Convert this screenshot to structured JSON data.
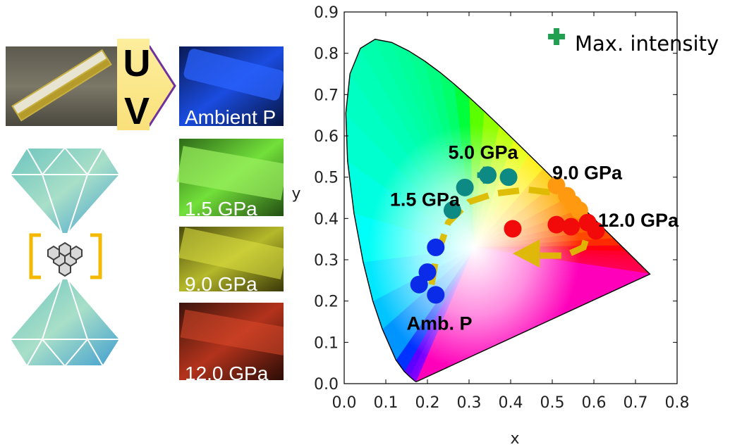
{
  "uv_label_letters": [
    "U",
    "V"
  ],
  "photos": [
    {
      "caption": "Ambient P"
    },
    {
      "caption": "1.5 GPa"
    },
    {
      "caption": "9.0 GPa"
    },
    {
      "caption": "12.0 GPa"
    }
  ],
  "colors": {
    "arrow": "#DDBB00",
    "uv_fill": "#FDEE9D",
    "uv_border": "#7030A0",
    "bracket": "#F5B800",
    "teal": "#0E8A84",
    "blue": "#0A2BE8",
    "orange": "#FF9A10",
    "red": "#F20A0A",
    "max_marker": "#22A052"
  },
  "chart_data": {
    "type": "scatter",
    "title": "",
    "xlabel": "x",
    "ylabel": "y",
    "xlim": [
      0.0,
      0.8
    ],
    "ylim": [
      0.0,
      0.9
    ],
    "xticks": [
      "0.0",
      "0.1",
      "0.2",
      "0.3",
      "0.4",
      "0.5",
      "0.6",
      "0.7",
      "0.8"
    ],
    "yticks": [
      "0.0",
      "0.1",
      "0.2",
      "0.3",
      "0.4",
      "0.5",
      "0.6",
      "0.7",
      "0.8",
      "0.9"
    ],
    "grid": false,
    "legend": {
      "label": "Max. intensity",
      "position": "top-right"
    },
    "series": [
      {
        "color": "#0A2BE8",
        "points": [
          [
            0.22,
            0.33
          ],
          [
            0.2,
            0.27
          ],
          [
            0.18,
            0.24
          ],
          [
            0.22,
            0.215
          ]
        ]
      },
      {
        "color": "#0E8A84",
        "points": [
          [
            0.26,
            0.42
          ],
          [
            0.29,
            0.475
          ],
          [
            0.345,
            0.505
          ],
          [
            0.395,
            0.5
          ]
        ]
      },
      {
        "color": "#FF9A10",
        "points": [
          [
            0.51,
            0.48
          ],
          [
            0.535,
            0.455
          ],
          [
            0.55,
            0.435
          ],
          [
            0.565,
            0.42
          ]
        ]
      },
      {
        "color": "#F20A0A",
        "points": [
          [
            0.405,
            0.375
          ],
          [
            0.51,
            0.385
          ],
          [
            0.545,
            0.38
          ],
          [
            0.585,
            0.39
          ],
          [
            0.605,
            0.37
          ]
        ]
      }
    ],
    "max_intensity_point": [
      0.34,
      0.505
    ],
    "annotations": [
      {
        "text": "5.0 GPa",
        "x": 0.25,
        "y": 0.545
      },
      {
        "text": "9.0 GPa",
        "x": 0.5,
        "y": 0.495
      },
      {
        "text": "1.5 GPa",
        "x": 0.11,
        "y": 0.43
      },
      {
        "text": "12.0 GPa",
        "x": 0.61,
        "y": 0.38
      },
      {
        "text": "Amb. P",
        "x": 0.15,
        "y": 0.13
      }
    ]
  }
}
